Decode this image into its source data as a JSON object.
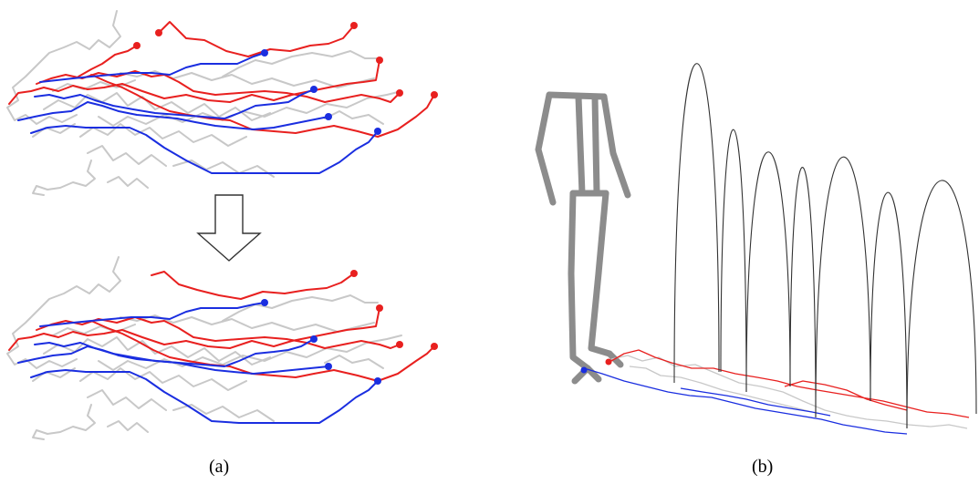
{
  "panels": {
    "a": {
      "caption": "(a)"
    },
    "b": {
      "caption": "(b)"
    }
  },
  "colors": {
    "red": "#e8201f",
    "blue": "#1a2ee0",
    "gray": "#c8c8c8",
    "skeleton": "#8c8c8c",
    "arc": "#333333"
  }
}
